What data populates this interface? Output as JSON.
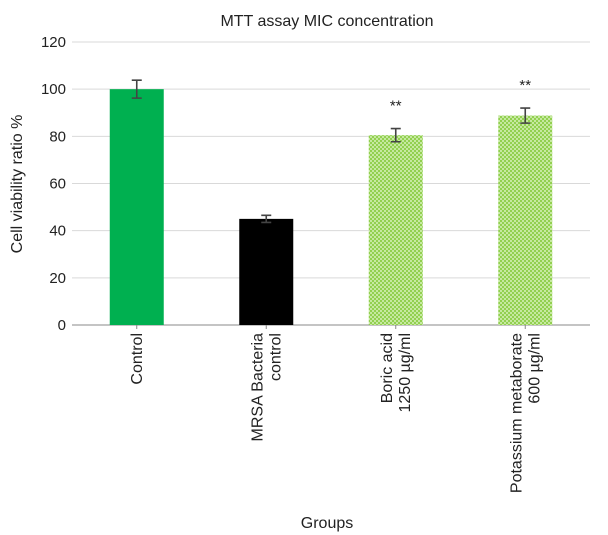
{
  "chart_data": {
    "type": "bar",
    "title": "MTT assay MIC concentration",
    "xlabel": "Groups",
    "ylabel": "Cell viability ratio %",
    "ylim": [
      0,
      120
    ],
    "yticks": [
      0,
      20,
      40,
      60,
      80,
      100,
      120
    ],
    "grid": true,
    "categories": [
      [
        "Control"
      ],
      [
        "MRSA Bacteria",
        "control"
      ],
      [
        "Boric acid",
        "1250 µg/ml"
      ],
      [
        "Potassium metaborate",
        "600 µg/ml"
      ]
    ],
    "values": [
      100,
      45,
      80.5,
      88.8
    ],
    "errors": [
      3.8,
      1.5,
      2.8,
      3.2
    ],
    "annotations": [
      "",
      "",
      "**",
      "**"
    ],
    "colors": [
      "#00b050",
      "#000000",
      "#92d050",
      "#92d050"
    ],
    "patterns": [
      "solid",
      "solid",
      "dotted",
      "dotted"
    ]
  }
}
